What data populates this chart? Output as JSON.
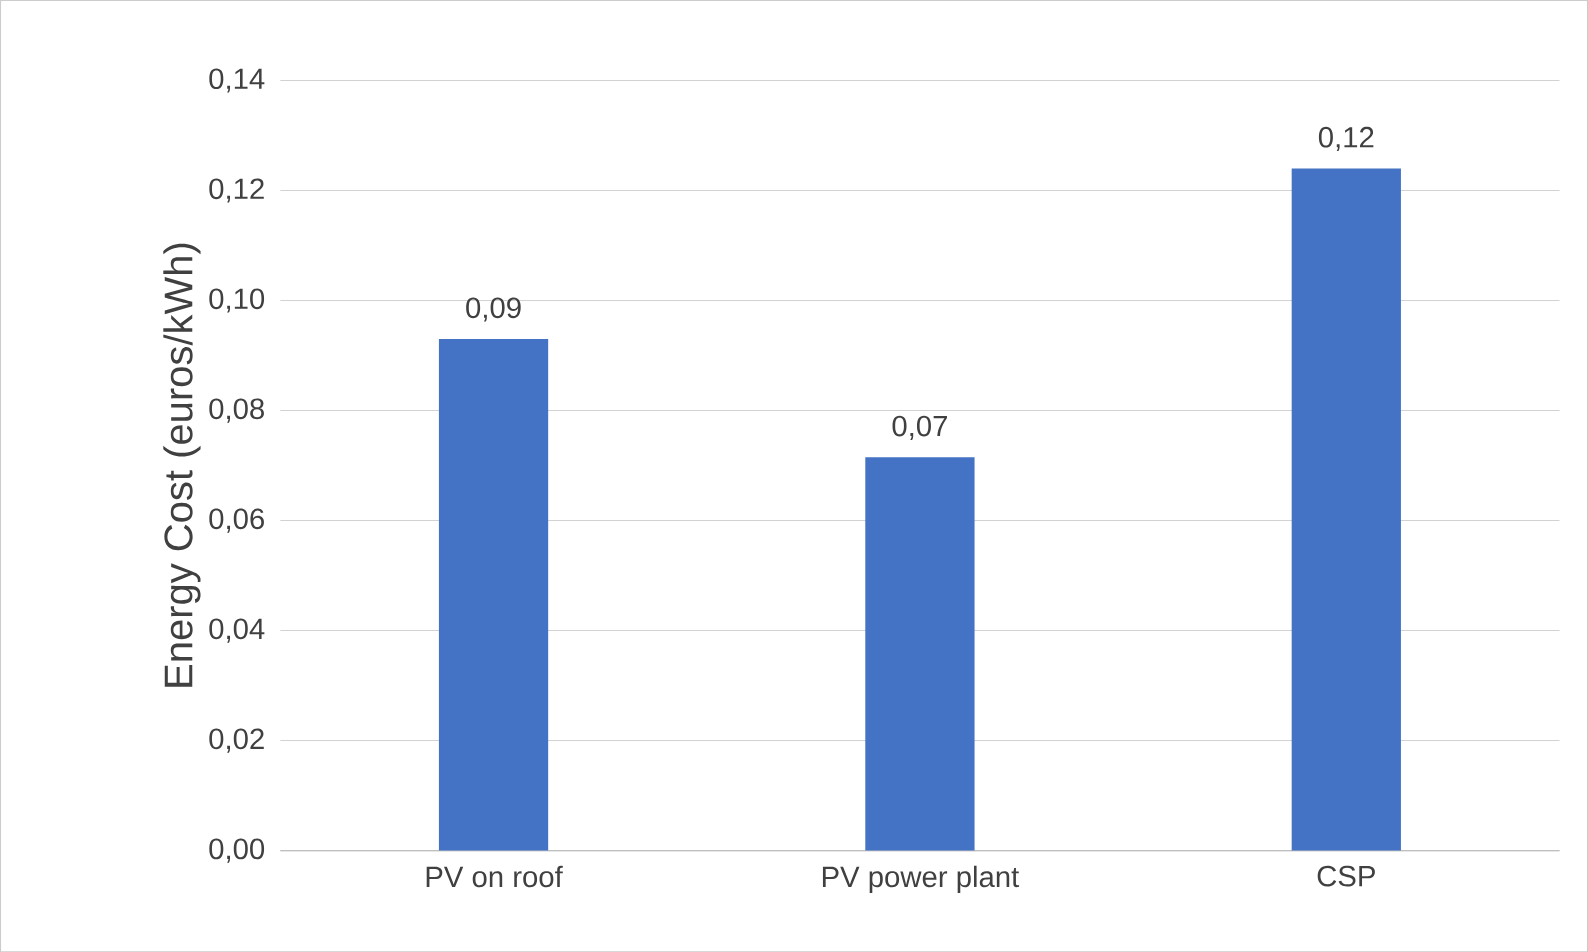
{
  "chart_data": {
    "type": "bar",
    "ylabel": "Energy Cost (euros/kWh)",
    "categories": [
      "PV on roof",
      "PV power plant",
      "CSP"
    ],
    "values": [
      0.093,
      0.0715,
      0.124
    ],
    "value_labels": [
      "0,09",
      "0,07",
      "0,12"
    ],
    "color": "#4472c4",
    "ylim": [
      0,
      0.14
    ],
    "yticks": [
      {
        "value": 0,
        "label": "0,00"
      },
      {
        "value": 0.02,
        "label": "0,02"
      },
      {
        "value": 0.04,
        "label": "0,04"
      },
      {
        "value": 0.06,
        "label": "0,06"
      },
      {
        "value": 0.08,
        "label": "0,08"
      },
      {
        "value": 0.1,
        "label": "0,10"
      },
      {
        "value": 0.12,
        "label": "0,12"
      },
      {
        "value": 0.14,
        "label": "0,14"
      }
    ],
    "grid": "y"
  }
}
